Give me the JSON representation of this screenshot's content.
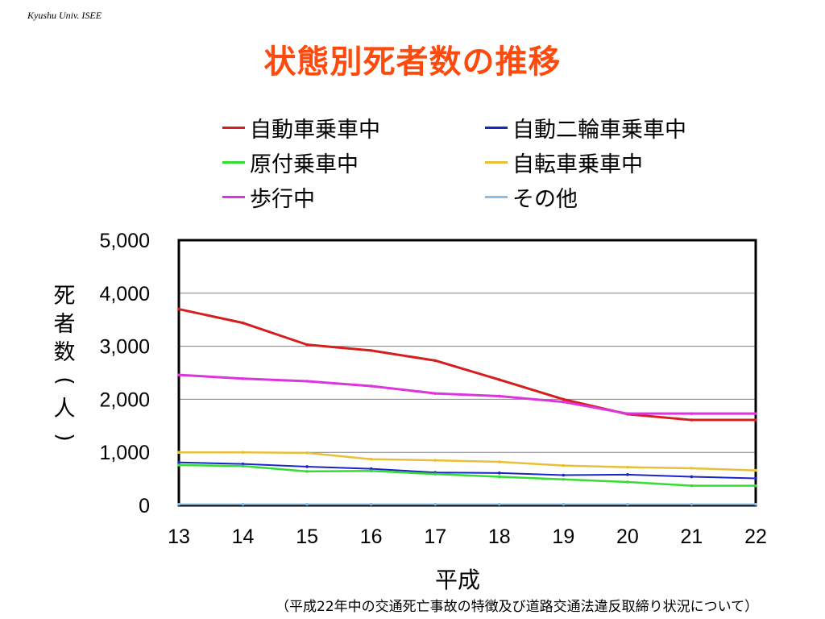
{
  "header": {
    "note": "Kyushu Univ. ISEE"
  },
  "page_title": "状態別死者数の推移",
  "source_note": "（平成22年中の交通死亡事故の特徴及び道路交通法違反取締り状況について）",
  "chart_data": {
    "type": "line",
    "title": "状態別死者数の推移",
    "xlabel": "平成",
    "ylabel": "死者数(人)",
    "x": [
      "13",
      "14",
      "15",
      "16",
      "17",
      "18",
      "19",
      "20",
      "21",
      "22"
    ],
    "ylim": [
      0,
      5000
    ],
    "yticks": [
      "0",
      "1,000",
      "2,000",
      "3,000",
      "4,000",
      "5,000"
    ],
    "ytick_values": [
      0,
      1000,
      2000,
      3000,
      4000,
      5000
    ],
    "grid": true,
    "legend_position": "top",
    "series": [
      {
        "name": "自動車乗車中",
        "color": "#d51f1f",
        "values": [
          3700,
          3440,
          3030,
          2920,
          2730,
          2370,
          2000,
          1720,
          1610,
          1610
        ]
      },
      {
        "name": "自動二輪車乗車中",
        "color": "#1a25c8",
        "values": [
          810,
          780,
          730,
          690,
          620,
          610,
          570,
          580,
          540,
          510
        ]
      },
      {
        "name": "原付乗車中",
        "color": "#33dd33",
        "values": [
          760,
          740,
          640,
          650,
          590,
          540,
          490,
          440,
          370,
          370
        ]
      },
      {
        "name": "自転車乗車中",
        "color": "#e8c038",
        "values": [
          1000,
          1000,
          990,
          870,
          850,
          820,
          750,
          720,
          700,
          660
        ]
      },
      {
        "name": "歩行中",
        "color": "#dd35dd",
        "values": [
          2460,
          2390,
          2340,
          2250,
          2110,
          2060,
          1950,
          1730,
          1730,
          1730
        ]
      },
      {
        "name": "その他",
        "color": "#87bfe8",
        "values": [
          20,
          20,
          20,
          20,
          20,
          20,
          20,
          20,
          20,
          20
        ]
      }
    ]
  }
}
